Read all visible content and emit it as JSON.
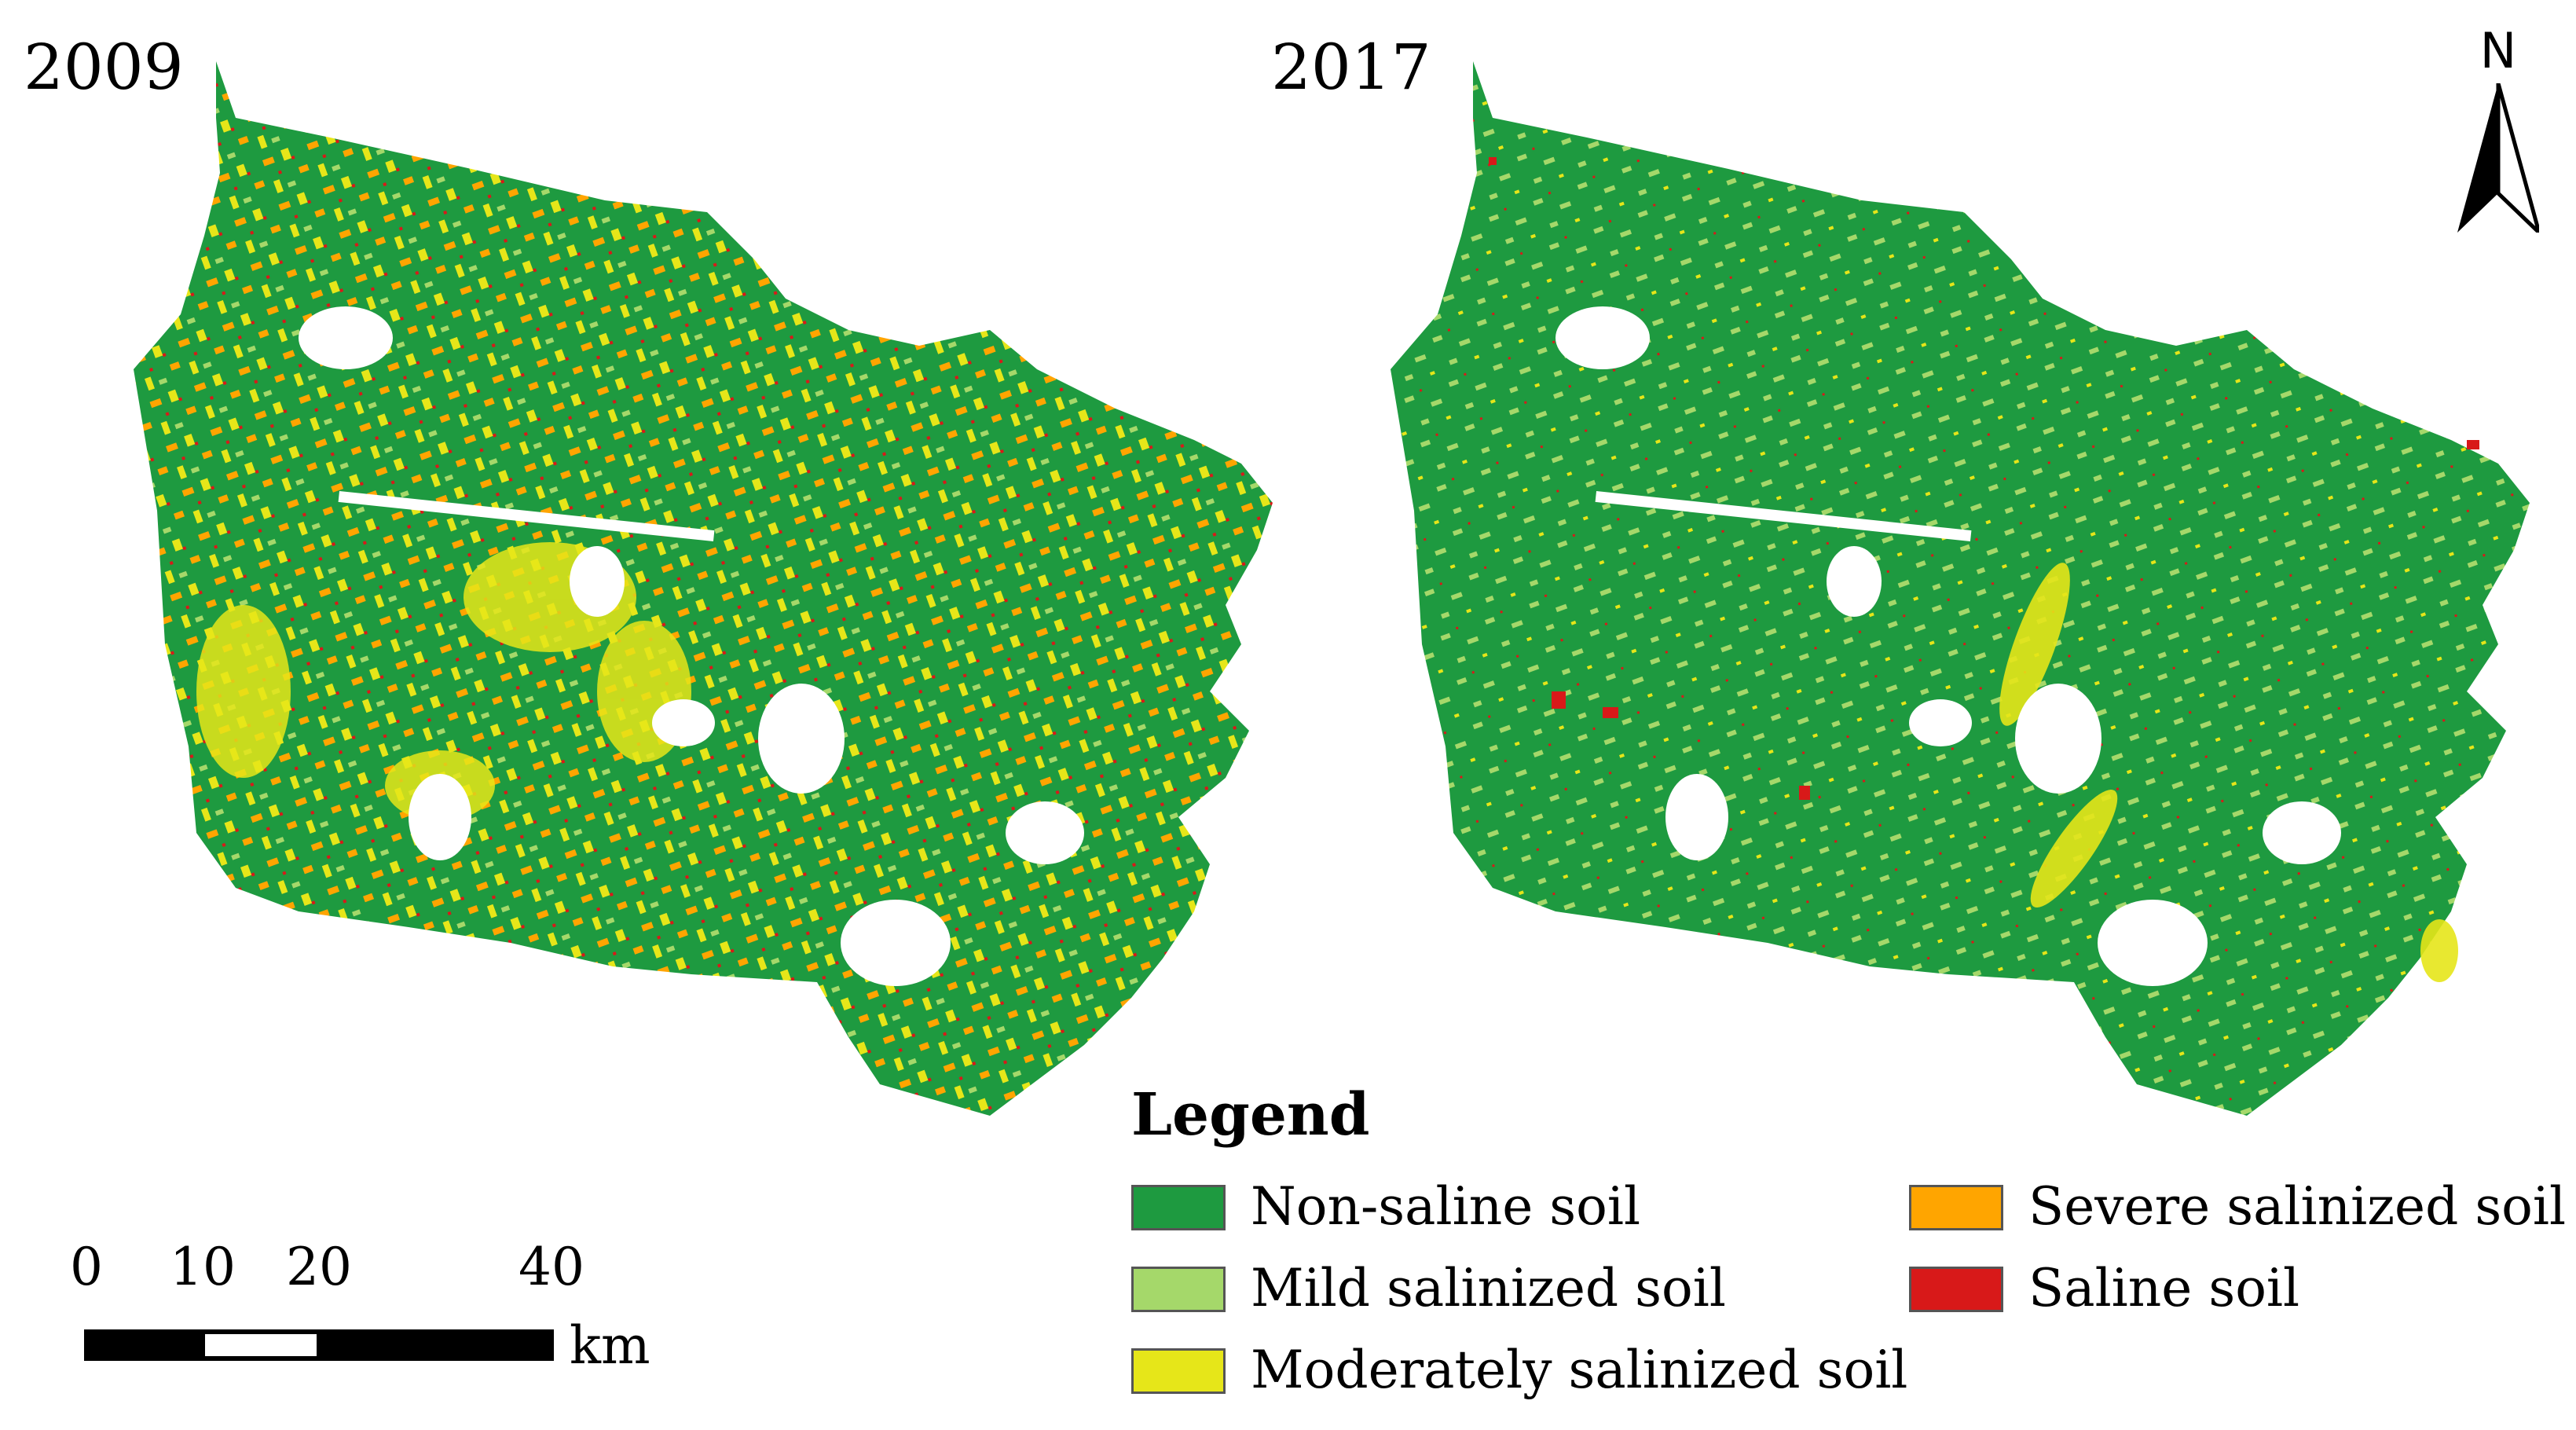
{
  "maps": [
    {
      "year": "2009",
      "dominant": "Non-saline soil"
    },
    {
      "year": "2017",
      "dominant": "Non-saline soil"
    }
  ],
  "north_arrow": {
    "label": "N"
  },
  "legend": {
    "title": "Legend",
    "items": [
      {
        "label": "Non-saline soil",
        "color": "#1e9a40"
      },
      {
        "label": "Mild salinized soil",
        "color": "#a5d86a"
      },
      {
        "label": "Moderately salinized soil",
        "color": "#e6e619"
      },
      {
        "label": "Severe salinized soil",
        "color": "#ffa500"
      },
      {
        "label": "Saline soil",
        "color": "#d81919"
      }
    ]
  },
  "scalebar": {
    "ticks": [
      "0",
      "10",
      "20",
      "40"
    ],
    "unit": "km"
  }
}
